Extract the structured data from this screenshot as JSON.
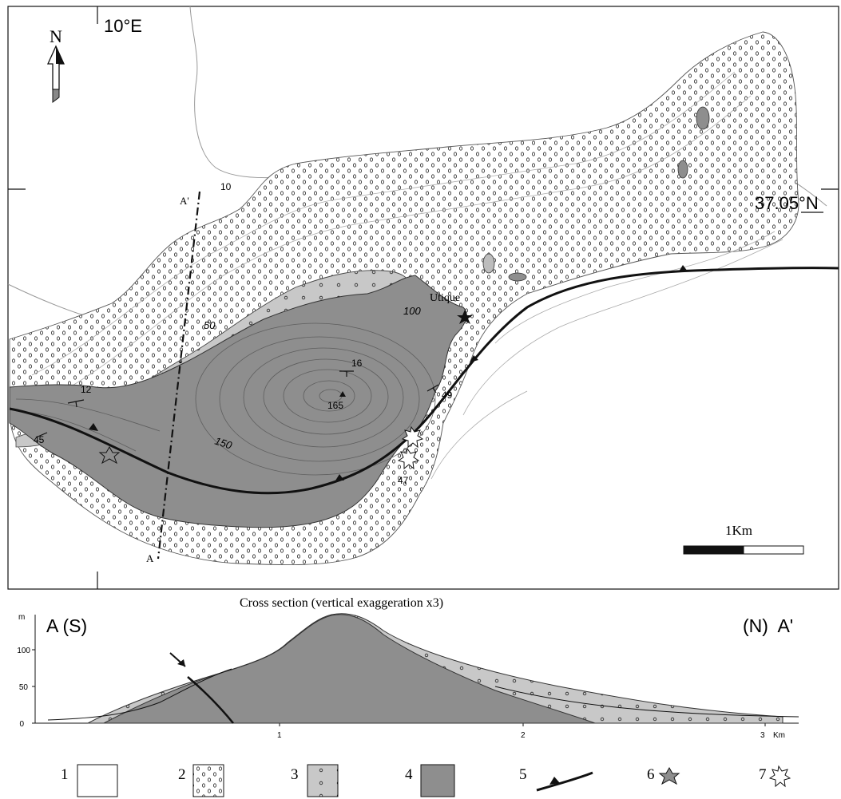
{
  "map": {
    "longitude_label": "10°E",
    "latitude_label": "37.05°N",
    "north_label": "N",
    "place_name": "Utique",
    "section_start_label": "A",
    "section_end_label": "A'",
    "scale_label": "1Km",
    "contour_labels": [
      "10",
      "50",
      "100",
      "150"
    ],
    "dip_values": [
      "12",
      "16",
      "45",
      "49",
      "47"
    ],
    "summit_elevation": "165"
  },
  "cross_section": {
    "title": "Cross section (vertical exaggeration x3)",
    "left_label": "A (S)",
    "right_label": "(N)  A'",
    "y_unit": "m",
    "y_ticks": [
      "0",
      "50",
      "100"
    ],
    "x_ticks": [
      "1",
      "2",
      "3"
    ],
    "x_unit": "Km"
  },
  "legend": {
    "items": [
      {
        "number": "1",
        "pattern": "blank"
      },
      {
        "number": "2",
        "pattern": "dotted"
      },
      {
        "number": "3",
        "pattern": "light-grey"
      },
      {
        "number": "4",
        "pattern": "dark-grey"
      },
      {
        "number": "5",
        "pattern": "thrust-fault"
      },
      {
        "number": "6",
        "pattern": "filled-star"
      },
      {
        "number": "7",
        "pattern": "open-star"
      }
    ]
  },
  "colors": {
    "dark_unit": "#8e8e8e",
    "light_unit": "#c8c8c8",
    "lines": "#111111"
  }
}
